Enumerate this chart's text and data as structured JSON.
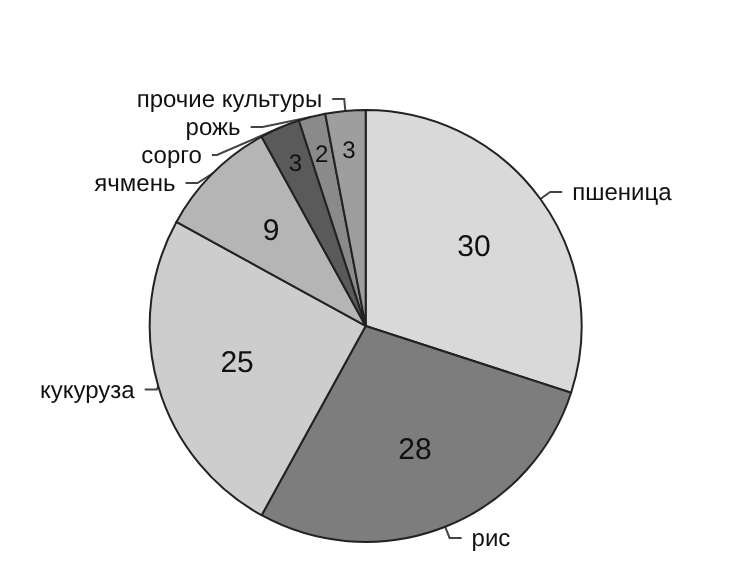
{
  "chart_data": {
    "type": "pie",
    "categories": [
      "пшеница",
      "рис",
      "кукуруза",
      "ячмень",
      "сорго",
      "рожь",
      "прочие культуры"
    ],
    "values": [
      30,
      28,
      25,
      9,
      3,
      2,
      3
    ],
    "colors": [
      "#d9d9d9",
      "#7d7d7d",
      "#cdcdcd",
      "#b5b5b5",
      "#5a5a5a",
      "#8a8a8a",
      "#9e9e9e"
    ],
    "data_labels": true,
    "legend": false
  }
}
